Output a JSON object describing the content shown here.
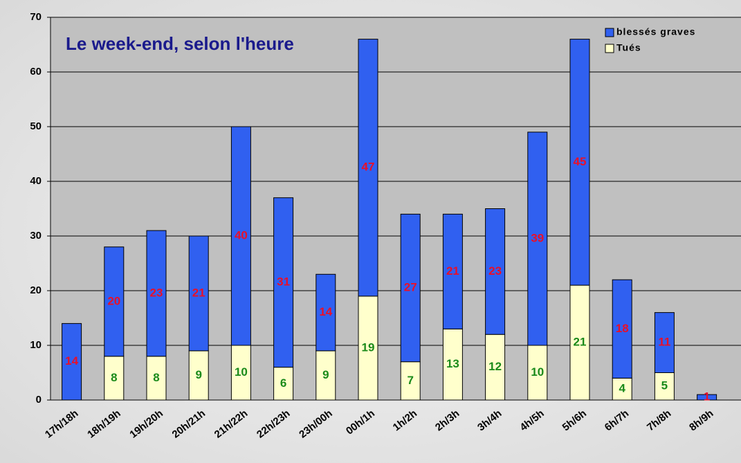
{
  "chart_data": {
    "type": "stacked_bar",
    "title": "Le week-end, selon l'heure",
    "categories": [
      "17h/18h",
      "18h/19h",
      "19h/20h",
      "20h/21h",
      "21h/22h",
      "22h/23h",
      "23h/00h",
      "00h/1h",
      "1h/2h",
      "2h/3h",
      "3h/4h",
      "4h/5h",
      "5h/6h",
      "6h/7h",
      "7h/8h",
      "8h/9h"
    ],
    "series": [
      {
        "name": "blessés graves",
        "color": "#3060f0",
        "label_color": "#e8102a",
        "values": [
          14,
          20,
          23,
          21,
          40,
          31,
          14,
          47,
          27,
          21,
          23,
          39,
          45,
          18,
          11,
          1
        ]
      },
      {
        "name": "Tués",
        "color": "#ffffcc",
        "label_color": "#1a8a1a",
        "values": [
          null,
          8,
          8,
          9,
          10,
          6,
          9,
          19,
          7,
          13,
          12,
          10,
          21,
          4,
          5,
          null
        ]
      }
    ],
    "ylim": [
      0,
      70
    ],
    "yticks": [
      0,
      10,
      20,
      30,
      40,
      50,
      60,
      70
    ],
    "grid": true,
    "legend": "top-right"
  }
}
